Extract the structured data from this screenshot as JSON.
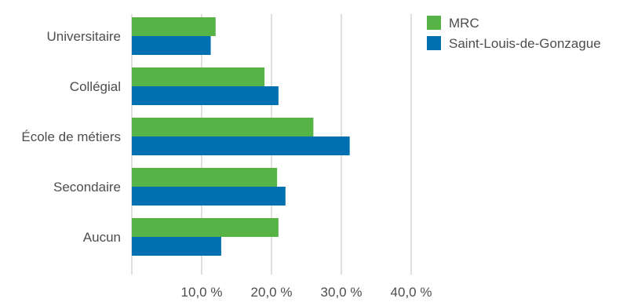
{
  "chart_data": {
    "type": "bar",
    "orientation": "horizontal",
    "categories": [
      "Universitaire",
      "Collégial",
      "École de métiers",
      "Secondaire",
      "Aucun"
    ],
    "series": [
      {
        "name": "MRC",
        "color": "#56b447",
        "values": [
          12.0,
          19.0,
          26.0,
          20.8,
          21.0
        ]
      },
      {
        "name": "Saint-Louis-de-Gonzague",
        "color": "#0070b0",
        "values": [
          11.3,
          21.0,
          31.2,
          22.0,
          12.8
        ]
      }
    ],
    "xlim": [
      0,
      40
    ],
    "ticks": [
      10,
      20,
      30,
      40
    ],
    "tick_labels": [
      "10,0 %",
      "20,0 %",
      "30,0 %",
      "40,0 %"
    ],
    "grid": true,
    "legend": "right"
  }
}
